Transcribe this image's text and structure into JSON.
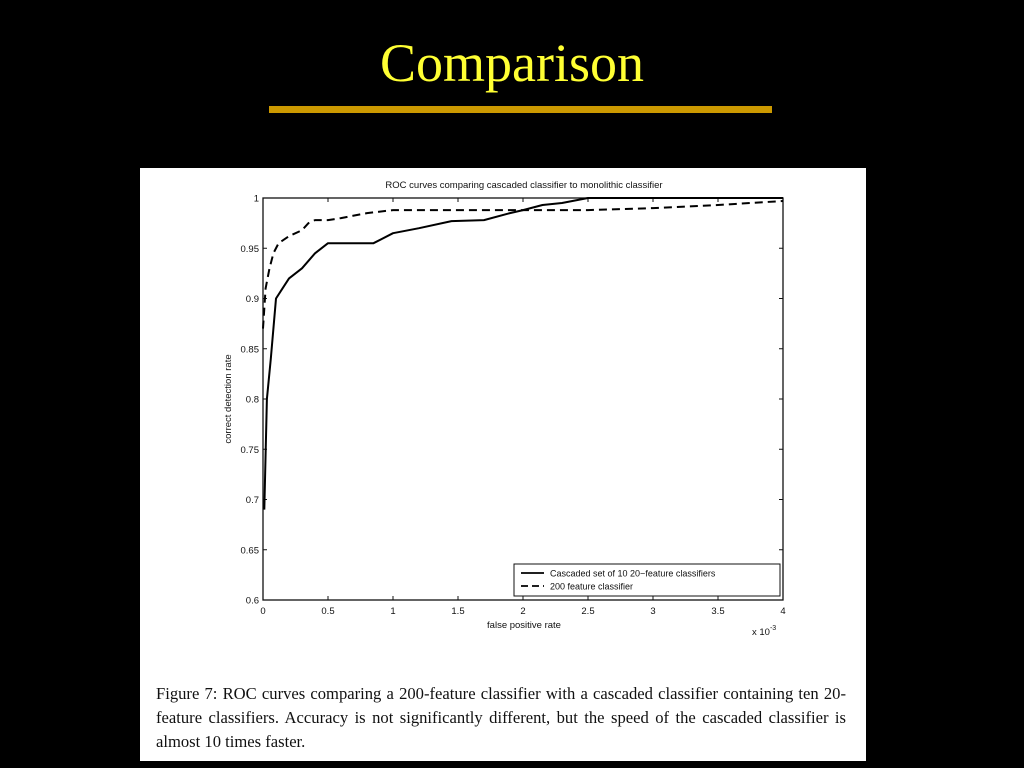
{
  "slide": {
    "title": "Comparison",
    "title_color": "#ffff33",
    "rule_color": "#cc9900",
    "background": "#000000"
  },
  "caption": "Figure 7:  ROC curves comparing a 200-feature classifier with a cascaded classifier containing ten 20-feature classifiers.  Accuracy is not significantly different, but the speed of the cascaded classifier is almost 10 times faster.",
  "chart_data": {
    "type": "line",
    "title": "ROC curves comparing cascaded classifier to monolithic classifier",
    "xlabel": "false positive rate",
    "ylabel": "correct detection rate",
    "x_multiplier_label": "x 10",
    "x_multiplier_exponent": "-3",
    "xlim": [
      0,
      4
    ],
    "ylim": [
      0.6,
      1
    ],
    "x_ticks": [
      0,
      0.5,
      1,
      1.5,
      2,
      2.5,
      3,
      3.5,
      4
    ],
    "x_tick_labels": [
      "0",
      "0.5",
      "1",
      "1.5",
      "2",
      "2.5",
      "3",
      "3.5",
      "4"
    ],
    "y_ticks": [
      0.6,
      0.65,
      0.7,
      0.75,
      0.8,
      0.85,
      0.9,
      0.95,
      1
    ],
    "y_tick_labels": [
      "0.6",
      "0.65",
      "0.7",
      "0.75",
      "0.8",
      "0.85",
      "0.9",
      "0.95",
      "1"
    ],
    "grid": false,
    "legend_position": "bottom-right",
    "series": [
      {
        "name": "Cascaded set of 10 20−feature classifiers",
        "style": "solid",
        "x": [
          0.01,
          0.03,
          0.06,
          0.1,
          0.15,
          0.2,
          0.3,
          0.4,
          0.5,
          0.6,
          0.7,
          0.85,
          1.0,
          1.2,
          1.45,
          1.7,
          1.9,
          2.0,
          2.15,
          2.3,
          2.5,
          4.0
        ],
        "y": [
          0.69,
          0.8,
          0.84,
          0.9,
          0.91,
          0.92,
          0.93,
          0.945,
          0.955,
          0.955,
          0.955,
          0.955,
          0.965,
          0.97,
          0.977,
          0.978,
          0.985,
          0.988,
          0.993,
          0.995,
          1.0,
          1.0
        ]
      },
      {
        "name": "200 feature classifier",
        "style": "dashed",
        "x": [
          0.0,
          0.02,
          0.05,
          0.08,
          0.12,
          0.2,
          0.3,
          0.35,
          0.4,
          0.5,
          0.6,
          0.8,
          1.0,
          1.2,
          1.5,
          1.8,
          2.0,
          2.2,
          2.5,
          3.0,
          3.5,
          4.0
        ],
        "y": [
          0.87,
          0.91,
          0.93,
          0.945,
          0.955,
          0.962,
          0.968,
          0.975,
          0.978,
          0.978,
          0.98,
          0.985,
          0.988,
          0.988,
          0.988,
          0.988,
          0.988,
          0.988,
          0.988,
          0.99,
          0.993,
          0.997
        ]
      }
    ]
  }
}
